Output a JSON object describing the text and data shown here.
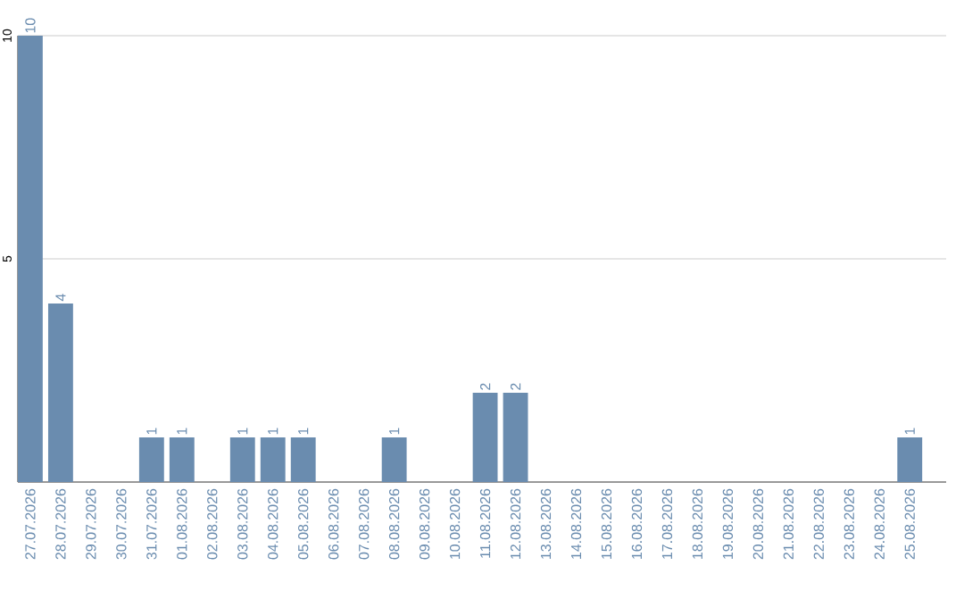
{
  "chart_data": {
    "type": "bar",
    "categories": [
      "27.07.2026",
      "28.07.2026",
      "29.07.2026",
      "30.07.2026",
      "31.07.2026",
      "01.08.2026",
      "02.08.2026",
      "03.08.2026",
      "04.08.2026",
      "05.08.2026",
      "06.08.2026",
      "07.08.2026",
      "08.08.2026",
      "09.08.2026",
      "10.08.2026",
      "11.08.2026",
      "12.08.2026",
      "13.08.2026",
      "14.08.2026",
      "15.08.2026",
      "16.08.2026",
      "17.08.2026",
      "18.08.2026",
      "19.08.2026",
      "20.08.2026",
      "21.08.2026",
      "22.08.2026",
      "23.08.2026",
      "24.08.2026",
      "25.08.2026"
    ],
    "values": [
      10,
      4,
      0,
      0,
      1,
      1,
      0,
      1,
      1,
      1,
      0,
      0,
      1,
      0,
      0,
      2,
      2,
      0,
      0,
      0,
      0,
      0,
      0,
      0,
      0,
      0,
      0,
      0,
      0,
      1
    ],
    "value_labels": [
      "10",
      "4",
      null,
      null,
      "1",
      "1",
      null,
      "1",
      "1",
      "1",
      null,
      null,
      "1",
      null,
      null,
      "2",
      "2",
      null,
      null,
      null,
      null,
      null,
      null,
      null,
      null,
      null,
      null,
      null,
      null,
      "1"
    ],
    "color": "#6a8caf",
    "ylim": [
      0,
      10
    ],
    "yticks": [
      5,
      10
    ],
    "grid": "y"
  }
}
